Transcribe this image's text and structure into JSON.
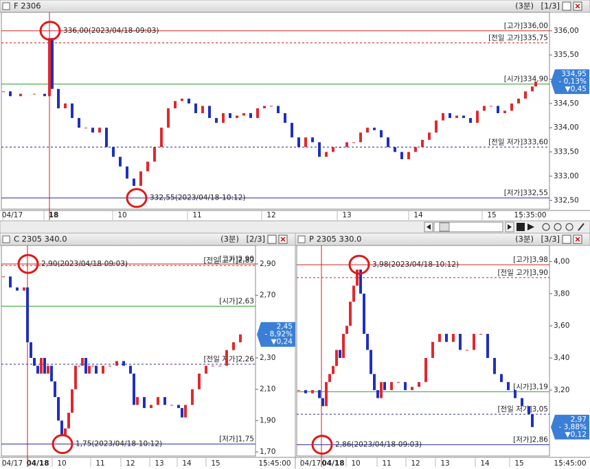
{
  "chart_data": [
    {
      "type": "candlestick",
      "title": "F 2306",
      "interval": "(3분)",
      "page": "[1/3]",
      "up_color": "#e0282e",
      "down_color": "#1f2fbf",
      "xlim": [
        0,
        798
      ],
      "ylim": [
        332.32,
        336.38
      ],
      "yticks": [
        {
          "value": 336.0,
          "label": "336,00"
        },
        {
          "value": 335.5,
          "label": "335,50"
        },
        {
          "value": 335.0,
          "label": "335,00"
        },
        {
          "value": 334.5,
          "label": "334,50"
        },
        {
          "value": 334.0,
          "label": "334,00"
        },
        {
          "value": 333.5,
          "label": "333,50"
        },
        {
          "value": 333.0,
          "label": "333,00"
        },
        {
          "value": 332.5,
          "label": "332,50"
        }
      ],
      "xticks": [
        {
          "value": 16,
          "label": "04/17"
        },
        {
          "value": 76,
          "label": "18"
        },
        {
          "value": 176,
          "label": "10"
        },
        {
          "value": 285,
          "label": "11"
        },
        {
          "value": 393,
          "label": "12"
        },
        {
          "value": 503,
          "label": "13"
        },
        {
          "value": 607,
          "label": "14"
        },
        {
          "value": 714,
          "label": "15"
        },
        {
          "value": 770,
          "label": "15:35:00"
        }
      ],
      "bold_tick": 1,
      "session_x": 70,
      "x": [
        3,
        13,
        28,
        48,
        63,
        70,
        74,
        83,
        93,
        103,
        113,
        123,
        133,
        143,
        153,
        163,
        173,
        183,
        193,
        203,
        213,
        223,
        233,
        243,
        253,
        263,
        273,
        283,
        293,
        303,
        313,
        323,
        333,
        343,
        353,
        363,
        373,
        383,
        393,
        403,
        413,
        423,
        433,
        443,
        453,
        463,
        473,
        483,
        493,
        503,
        513,
        523,
        533,
        543,
        553,
        563,
        573,
        583,
        593,
        603,
        613,
        623,
        633,
        643,
        653,
        663,
        673,
        683,
        693,
        703,
        713,
        723,
        733,
        743,
        753,
        763,
        773,
        778
      ],
      "values": [
        334.75,
        334.65,
        334.7,
        334.7,
        334.65,
        335.85,
        334.8,
        334.4,
        334.5,
        334.2,
        334.0,
        334.0,
        333.9,
        334.0,
        333.6,
        333.4,
        333.2,
        332.95,
        332.8,
        333.1,
        333.3,
        333.6,
        334.0,
        334.4,
        334.55,
        334.6,
        334.5,
        334.3,
        334.45,
        334.2,
        334.1,
        334.3,
        334.2,
        334.25,
        334.3,
        334.2,
        334.4,
        334.45,
        334.45,
        334.3,
        334.1,
        333.8,
        333.6,
        333.8,
        333.7,
        333.4,
        333.5,
        333.6,
        333.6,
        333.7,
        333.7,
        333.9,
        334.0,
        333.95,
        333.8,
        333.6,
        333.5,
        333.35,
        333.5,
        333.6,
        333.75,
        333.9,
        334.15,
        334.3,
        334.2,
        334.25,
        334.2,
        334.1,
        334.35,
        334.45,
        334.45,
        334.3,
        334.35,
        334.5,
        334.6,
        334.75,
        334.85,
        334.95
      ],
      "ref_lines": [
        {
          "label": "[고가]336,00",
          "value": 336.0,
          "color": "#d02020",
          "style": "solid"
        },
        {
          "label": "[전일 고가]335,75",
          "value": 335.75,
          "color": "#d02020",
          "style": "dashed"
        },
        {
          "label": "[시가]334,90",
          "value": 334.9,
          "color": "#2a9a2a",
          "style": "solid"
        },
        {
          "label": "[전일 저가]333,60",
          "value": 333.6,
          "color": "#2a2aa0",
          "style": "dashed"
        },
        {
          "label": "[저가]332,55",
          "value": 332.55,
          "color": "#2a2aa0",
          "style": "solid"
        }
      ],
      "annotations": [
        {
          "text": "336,00(2023/04/18-09:03)",
          "value": 336.0,
          "x": 70,
          "color": "#d02020"
        },
        {
          "text": "332,55(2023/04/18-10:12)",
          "value": 332.55,
          "x": 196,
          "color": "#2a2aa0"
        }
      ],
      "quote": {
        "value": 334.95,
        "price": "334,95",
        "change_pct": "- 0,13%",
        "change": "▼0,45"
      }
    },
    {
      "type": "candlestick",
      "title": "C 2305 340.0",
      "interval": "(3분)",
      "page": "[2/3]",
      "up_color": "#e0282e",
      "down_color": "#1f2fbf",
      "xlim": [
        0,
        370
      ],
      "ylim": [
        1.674,
        3.018
      ],
      "yticks": [
        {
          "value": 2.9,
          "label": "2,90"
        },
        {
          "value": 2.7,
          "label": "2,70"
        },
        {
          "value": 2.3,
          "label": "2,30"
        },
        {
          "value": 2.1,
          "label": "2,10"
        },
        {
          "value": 1.9,
          "label": "1,90"
        },
        {
          "value": 1.7,
          "label": "1,70"
        }
      ],
      "xticks": [
        {
          "value": 16,
          "label": "04/17"
        },
        {
          "value": 53,
          "label": "04/18"
        },
        {
          "value": 88,
          "label": "10"
        },
        {
          "value": 144,
          "label": "11"
        },
        {
          "value": 188,
          "label": "12"
        },
        {
          "value": 230,
          "label": "13"
        },
        {
          "value": 270,
          "label": "14"
        },
        {
          "value": 312,
          "label": "15"
        },
        {
          "value": 398,
          "label": "15:45:00"
        }
      ],
      "bold_tick": 1,
      "session_x": 38,
      "x": [
        3,
        13,
        23,
        33,
        38,
        43,
        48,
        53,
        58,
        63,
        68,
        73,
        78,
        83,
        88,
        93,
        98,
        103,
        108,
        113,
        118,
        123,
        128,
        133,
        138,
        148,
        158,
        168,
        178,
        188,
        193,
        198,
        208,
        218,
        228,
        238,
        248,
        258,
        263,
        268,
        278,
        288,
        298,
        308,
        318,
        328,
        338,
        348
      ],
      "values": [
        2.82,
        2.75,
        2.73,
        2.75,
        2.4,
        2.3,
        2.25,
        2.2,
        2.3,
        2.2,
        2.25,
        2.15,
        2.05,
        1.9,
        1.8,
        1.85,
        1.95,
        2.1,
        2.25,
        2.25,
        2.3,
        2.2,
        2.25,
        2.25,
        2.2,
        2.25,
        2.25,
        2.28,
        2.25,
        2.2,
        2.0,
        2.05,
        1.98,
        2.0,
        2.05,
        2.0,
        2.0,
        1.98,
        1.92,
        2.0,
        2.1,
        2.2,
        2.25,
        2.25,
        2.25,
        2.35,
        2.4,
        2.45
      ],
      "ref_lines": [
        {
          "label": "[고가]2,90",
          "value": 2.9,
          "color": "#d02020",
          "style": "solid"
        },
        {
          "label": "[전일 고가]2,89",
          "value": 2.89,
          "color": "#d02020",
          "style": "dashed"
        },
        {
          "label": "[시가]2,63",
          "value": 2.63,
          "color": "#2a9a2a",
          "style": "solid"
        },
        {
          "label": "[전일 저가]2,26",
          "value": 2.26,
          "color": "#2a2aa0",
          "style": "dashed"
        },
        {
          "label": "[저가]1,75",
          "value": 1.75,
          "color": "#2a2aa0",
          "style": "solid"
        }
      ],
      "annotations": [
        {
          "text": "2,90(2023/04/18-09:03)",
          "value": 2.9,
          "x": 38,
          "color": "#d02020"
        },
        {
          "text": "1,75(2023/04/18-10:12)",
          "value": 1.75,
          "x": 88,
          "color": "#2a2aa0"
        }
      ],
      "quote": {
        "value": 2.45,
        "price": "2,45",
        "change_pct": "- 8,92%",
        "change": "▼0,24"
      }
    },
    {
      "type": "candlestick",
      "title": "P 2305 330.0",
      "interval": "(3분)",
      "page": "[3/3]",
      "up_color": "#e0282e",
      "down_color": "#1f2fbf",
      "xlim": [
        0,
        368
      ],
      "ylim": [
        2.79,
        4.1
      ],
      "yticks": [
        {
          "value": 4.0,
          "label": "4,00"
        },
        {
          "value": 3.8,
          "label": "3,80"
        },
        {
          "value": 3.6,
          "label": "3,60"
        },
        {
          "value": 3.4,
          "label": "3,40"
        },
        {
          "value": 3.2,
          "label": "3,20"
        }
      ],
      "xticks": [
        {
          "value": 20,
          "label": "04/17"
        },
        {
          "value": 53,
          "label": "04/18"
        },
        {
          "value": 86,
          "label": "10"
        },
        {
          "value": 131,
          "label": "11"
        },
        {
          "value": 173,
          "label": "12"
        },
        {
          "value": 216,
          "label": "13"
        },
        {
          "value": 274,
          "label": "14"
        },
        {
          "value": 324,
          "label": "15"
        },
        {
          "value": 398,
          "label": "15:45:00"
        }
      ],
      "bold_tick": 1,
      "session_x": 36,
      "x": [
        3,
        13,
        23,
        33,
        38,
        43,
        48,
        53,
        58,
        63,
        68,
        73,
        78,
        83,
        88,
        93,
        98,
        103,
        108,
        113,
        118,
        123,
        128,
        138,
        148,
        158,
        168,
        178,
        188,
        198,
        208,
        218,
        228,
        238,
        248,
        258,
        268,
        278,
        288,
        298,
        308,
        318,
        328,
        338,
        343
      ],
      "values": [
        3.2,
        3.18,
        3.2,
        3.15,
        3.1,
        3.25,
        3.3,
        3.35,
        3.45,
        3.4,
        3.55,
        3.6,
        3.75,
        3.85,
        3.95,
        3.8,
        3.55,
        3.45,
        3.3,
        3.2,
        3.15,
        3.25,
        3.2,
        3.25,
        3.25,
        3.2,
        3.22,
        3.25,
        3.4,
        3.5,
        3.55,
        3.5,
        3.55,
        3.45,
        3.45,
        3.55,
        3.55,
        3.4,
        3.3,
        3.25,
        3.2,
        3.15,
        3.1,
        3.05,
        2.97
      ],
      "ref_lines": [
        {
          "label": "[고가]3,98",
          "value": 3.98,
          "color": "#d02020",
          "style": "solid"
        },
        {
          "label": "[전일 고가]3,90",
          "value": 3.9,
          "color": "#d02020",
          "style": "dashed"
        },
        {
          "label": "[시가]3,19",
          "value": 3.19,
          "color": "#2a9a2a",
          "style": "solid"
        },
        {
          "label": "[전일 저가]3,05",
          "value": 3.05,
          "color": "#2a2aa0",
          "style": "dashed"
        },
        {
          "label": "[저가]2,86",
          "value": 2.86,
          "color": "#2a2aa0",
          "style": "solid"
        }
      ],
      "annotations": [
        {
          "text": "3,98(2023/04/18-10:12)",
          "value": 3.98,
          "x": 90,
          "color": "#d02020"
        },
        {
          "text": "2,86(2023/04/18-09:03)",
          "value": 2.86,
          "x": 36,
          "color": "#2a2aa0"
        }
      ],
      "quote": {
        "value": 2.97,
        "price": "2,97",
        "change_pct": "- 3,88%",
        "change": "▼0,12"
      }
    }
  ]
}
